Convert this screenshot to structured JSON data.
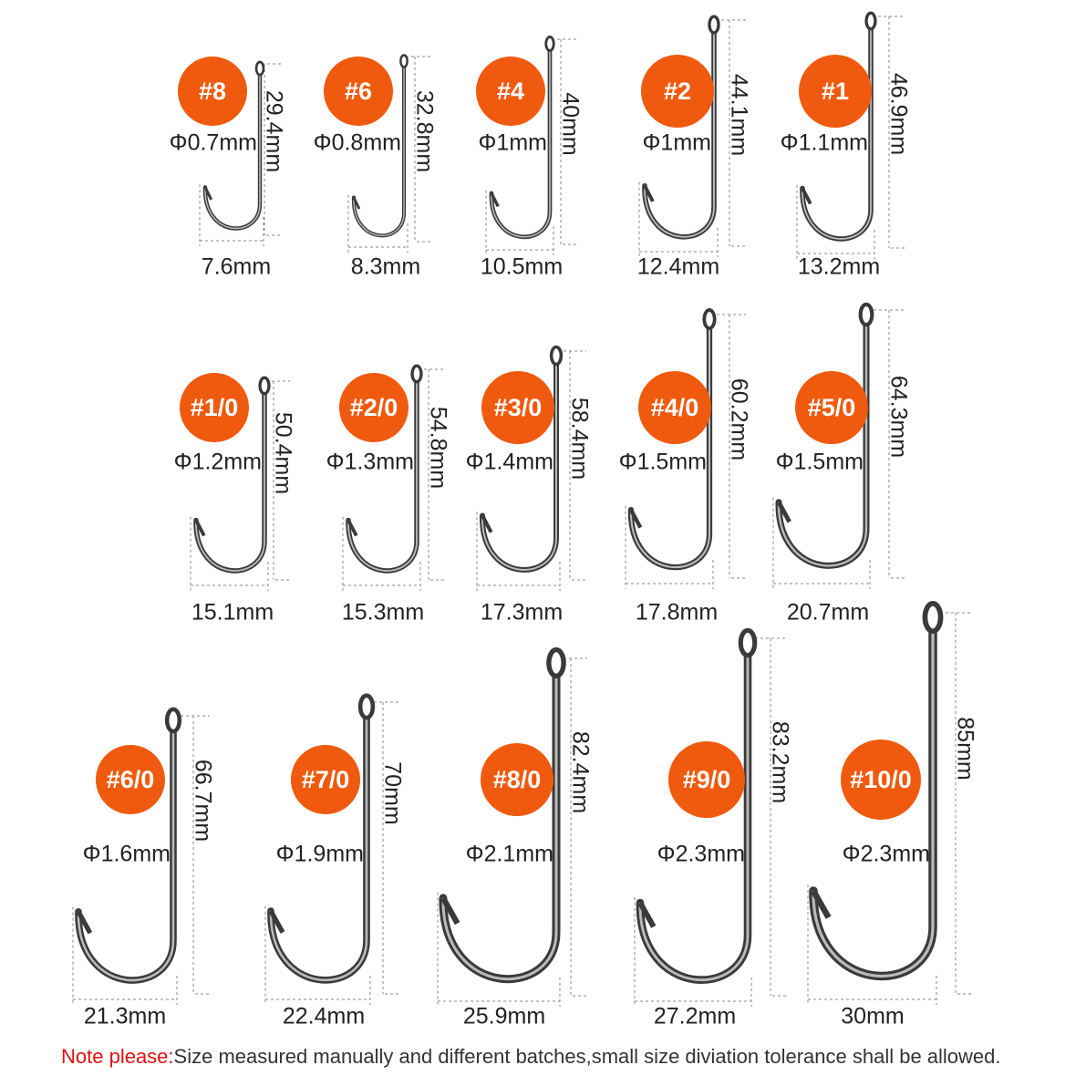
{
  "accent_color": "#f05a0e",
  "hooks": [
    {
      "size": "#8",
      "diameter": "Φ0.7mm",
      "length": "29.4mm",
      "width": "7.6mm"
    },
    {
      "size": "#6",
      "diameter": "Φ0.8mm",
      "length": "32.8mm",
      "width": "8.3mm"
    },
    {
      "size": "#4",
      "diameter": "Φ1mm",
      "length": "40mm",
      "width": "10.5mm"
    },
    {
      "size": "#2",
      "diameter": "Φ1mm",
      "length": "44.1mm",
      "width": "12.4mm"
    },
    {
      "size": "#1",
      "diameter": "Φ1.1mm",
      "length": "46.9mm",
      "width": "13.2mm"
    },
    {
      "size": "#1/0",
      "diameter": "Φ1.2mm",
      "length": "50.4mm",
      "width": "15.1mm"
    },
    {
      "size": "#2/0",
      "diameter": "Φ1.3mm",
      "length": "54.8mm",
      "width": "15.3mm"
    },
    {
      "size": "#3/0",
      "diameter": "Φ1.4mm",
      "length": "58.4mm",
      "width": "17.3mm"
    },
    {
      "size": "#4/0",
      "diameter": "Φ1.5mm",
      "length": "60.2mm",
      "width": "17.8mm"
    },
    {
      "size": "#5/0",
      "diameter": "Φ1.5mm",
      "length": "64.3mm",
      "width": "20.7mm"
    },
    {
      "size": "#6/0",
      "diameter": "Φ1.6mm",
      "length": "66.7mm",
      "width": "21.3mm"
    },
    {
      "size": "#7/0",
      "diameter": "Φ1.9mm",
      "length": "70mm",
      "width": "22.4mm"
    },
    {
      "size": "#8/0",
      "diameter": "Φ2.1mm",
      "length": "82.4mm",
      "width": "25.9mm"
    },
    {
      "size": "#9/0",
      "diameter": "Φ2.3mm",
      "length": "83.2mm",
      "width": "27.2mm"
    },
    {
      "size": "#10/0",
      "diameter": "Φ2.3mm",
      "length": "85mm",
      "width": "30mm"
    }
  ],
  "note": {
    "label": "Note please:",
    "text": "Size measured manually and different batches,small size diviation tolerance shall be allowed."
  }
}
